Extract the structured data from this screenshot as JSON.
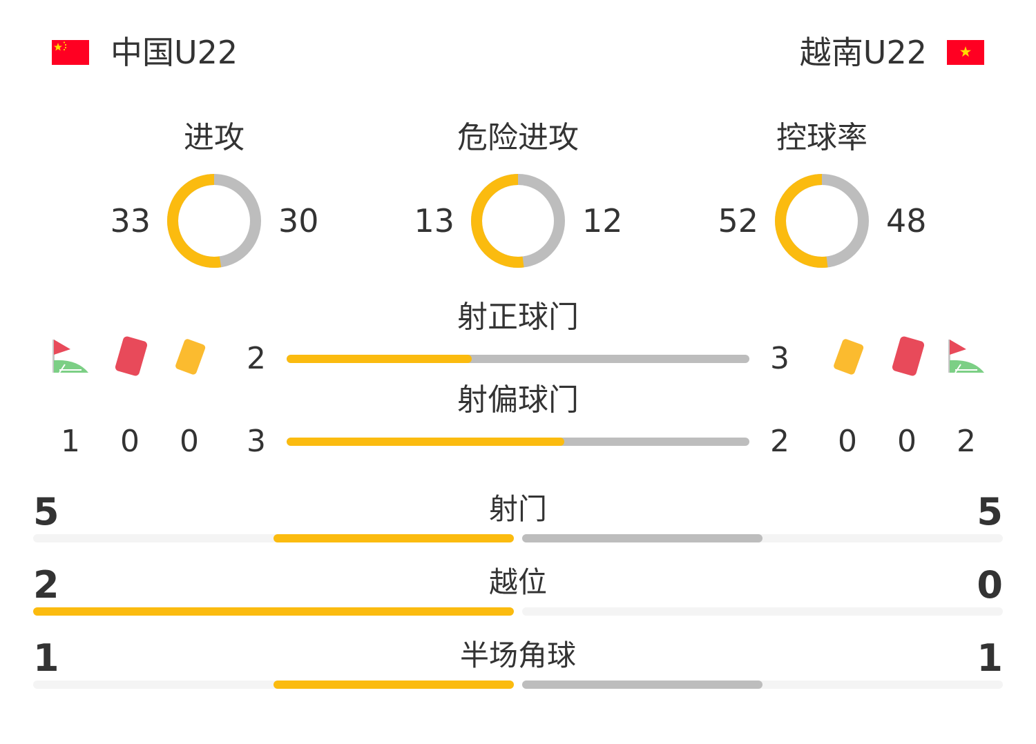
{
  "home": {
    "name": "中国U22",
    "flag": "china-flag"
  },
  "away": {
    "name": "越南U22",
    "flag": "vietnam-flag"
  },
  "colors": {
    "home": "#fbbb0f",
    "away": "#bdbdbd",
    "track": "#f4f4f4",
    "text": "#333333"
  },
  "donuts": [
    {
      "label": "进攻",
      "home": 33,
      "away": 30
    },
    {
      "label": "危险进攻",
      "home": 13,
      "away": 12
    },
    {
      "label": "控球率",
      "home": 52,
      "away": 48
    }
  ],
  "shots_on": {
    "label": "射正球门",
    "home": 2,
    "away": 3
  },
  "shots_off": {
    "label": "射偏球门",
    "home": 3,
    "away": 2
  },
  "icons": [
    "corner-flag-icon",
    "red-card-icon",
    "yellow-card-icon"
  ],
  "counts": {
    "home": {
      "corners": 1,
      "red": 0,
      "yellow": 0
    },
    "away": {
      "corners": 2,
      "red": 0,
      "yellow": 0
    }
  },
  "stats": [
    {
      "label": "射门",
      "home": 5,
      "away": 5
    },
    {
      "label": "越位",
      "home": 2,
      "away": 0
    },
    {
      "label": "半场角球",
      "home": 1,
      "away": 1
    }
  ]
}
